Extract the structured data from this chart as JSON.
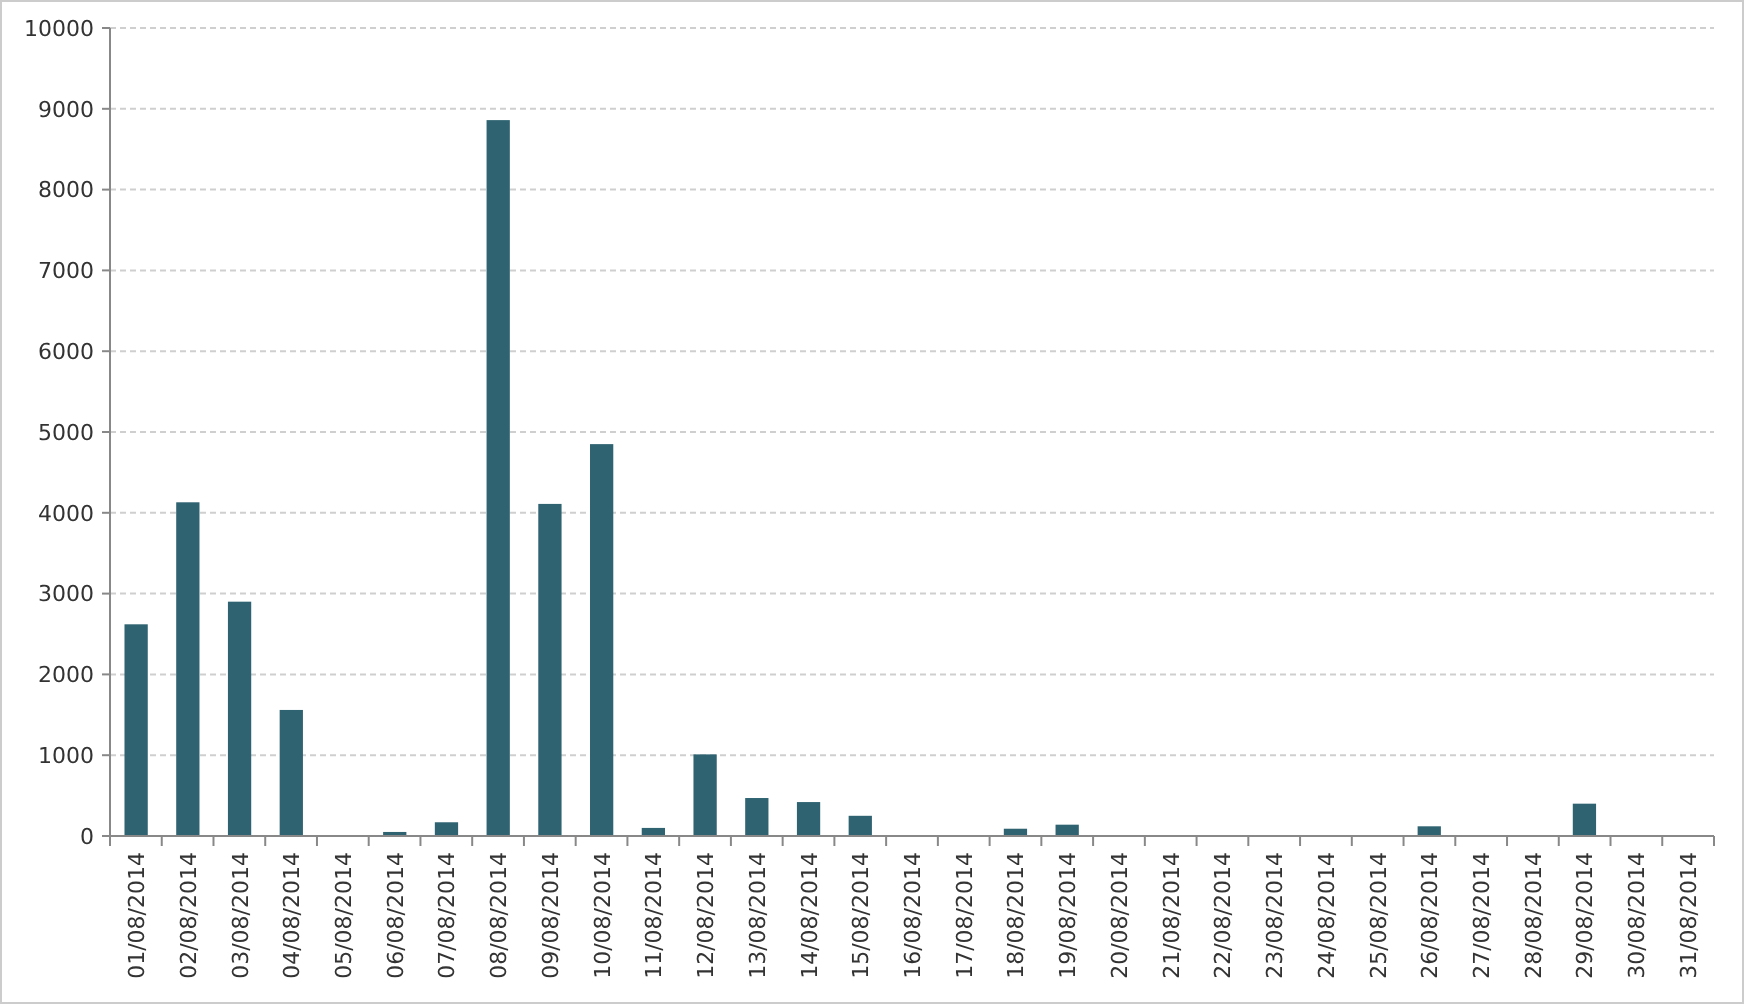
{
  "chart_data": {
    "type": "bar",
    "categories": [
      "01/08/2014",
      "02/08/2014",
      "03/08/2014",
      "04/08/2014",
      "05/08/2014",
      "06/08/2014",
      "07/08/2014",
      "08/08/2014",
      "09/08/2014",
      "10/08/2014",
      "11/08/2014",
      "12/08/2014",
      "13/08/2014",
      "14/08/2014",
      "15/08/2014",
      "16/08/2014",
      "17/08/2014",
      "18/08/2014",
      "19/08/2014",
      "20/08/2014",
      "21/08/2014",
      "22/08/2014",
      "23/08/2014",
      "24/08/2014",
      "25/08/2014",
      "26/08/2014",
      "27/08/2014",
      "28/08/2014",
      "29/08/2014",
      "30/08/2014",
      "31/08/2014"
    ],
    "values": [
      2620,
      4130,
      2900,
      1560,
      10,
      50,
      170,
      8860,
      4110,
      4850,
      100,
      1010,
      470,
      420,
      250,
      0,
      0,
      90,
      140,
      0,
      0,
      0,
      0,
      0,
      0,
      120,
      0,
      0,
      400,
      0,
      0
    ],
    "color": "#2f6372",
    "ylim": [
      0,
      10000
    ],
    "yticks": [
      0,
      1000,
      2000,
      3000,
      4000,
      5000,
      6000,
      7000,
      8000,
      9000,
      10000
    ],
    "grid": "y"
  }
}
